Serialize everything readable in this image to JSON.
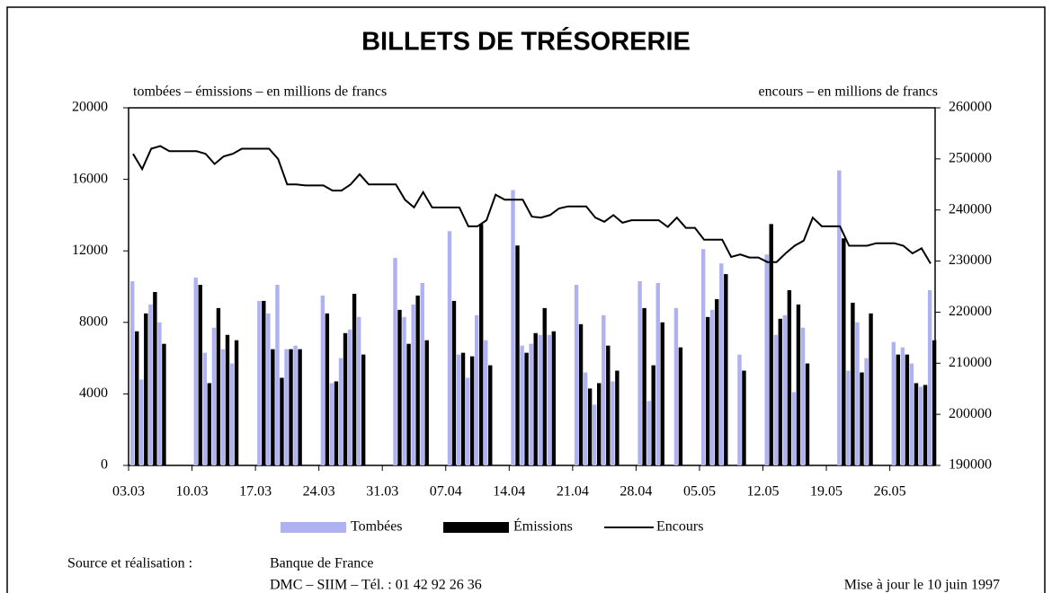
{
  "chart_data": {
    "type": "bar_line",
    "title": "BILLETS DE TRÉSORERIE",
    "y_label": "tombées – émissions – en millions de francs",
    "y2_label": "encours – en millions de francs",
    "categories": [
      "03.03",
      null,
      null,
      null,
      null,
      null,
      null,
      "10.03",
      null,
      null,
      null,
      null,
      null,
      null,
      "17.03",
      null,
      null,
      null,
      null,
      null,
      null,
      "24.03",
      null,
      null,
      null,
      null,
      null,
      null,
      "31.03",
      null,
      null,
      null,
      null,
      null,
      null,
      "07.04",
      null,
      null,
      null,
      null,
      null,
      null,
      "14.04",
      null,
      null,
      null,
      null,
      null,
      null,
      "21.04",
      null,
      null,
      null,
      null,
      null,
      null,
      "28.04",
      null,
      null,
      null,
      null,
      null,
      null,
      "05.05",
      null,
      null,
      null,
      null,
      null,
      null,
      "12.05",
      null,
      null,
      null,
      null,
      null,
      null,
      "19.05",
      null,
      null,
      null,
      null,
      null,
      null,
      "26.05",
      null,
      null,
      null,
      null
    ],
    "ylim": [
      0,
      20000
    ],
    "yticks": [
      0,
      4000,
      8000,
      12000,
      16000,
      20000
    ],
    "y2lim": [
      190000,
      260000
    ],
    "y2ticks": [
      190000,
      200000,
      210000,
      220000,
      230000,
      240000,
      250000,
      260000
    ],
    "series": [
      {
        "name": "Tombées",
        "color": "#aeb2f0",
        "values": [
          10300,
          4800,
          9000,
          8000,
          null,
          null,
          null,
          10500,
          6300,
          7700,
          6500,
          5700,
          null,
          null,
          9200,
          8500,
          10100,
          6500,
          6700,
          null,
          null,
          9500,
          4600,
          6000,
          7600,
          8300,
          null,
          null,
          null,
          11600,
          8300,
          9000,
          10200,
          null,
          null,
          13100,
          6200,
          4900,
          8400,
          7000,
          null,
          null,
          15400,
          6700,
          6800,
          7300,
          7300,
          null,
          null,
          10100,
          5200,
          3400,
          8400,
          4700,
          null,
          null,
          10300,
          3600,
          10200,
          null,
          8800,
          null,
          null,
          12100,
          8700,
          11300,
          null,
          6200,
          null,
          null,
          11800,
          7300,
          8400,
          4100,
          7700,
          null,
          null,
          null,
          16500,
          5300,
          8000,
          6000,
          null,
          null,
          6900,
          6600,
          5700,
          4400,
          9800
        ]
      },
      {
        "name": "Émissions",
        "color": "#000000",
        "values": [
          7500,
          8500,
          9700,
          6800,
          null,
          null,
          null,
          10100,
          4600,
          8800,
          7300,
          7000,
          null,
          null,
          9200,
          6500,
          4900,
          6500,
          6500,
          null,
          null,
          8500,
          4700,
          7400,
          9600,
          6200,
          null,
          null,
          null,
          8700,
          6800,
          9500,
          7000,
          null,
          null,
          9200,
          6300,
          6100,
          13500,
          5600,
          null,
          null,
          12300,
          6300,
          7400,
          8800,
          7500,
          null,
          null,
          7900,
          4300,
          4600,
          6700,
          5300,
          null,
          null,
          8800,
          5600,
          8000,
          null,
          6600,
          null,
          null,
          8300,
          9300,
          10700,
          null,
          5300,
          null,
          null,
          13500,
          8200,
          9800,
          9000,
          5700,
          null,
          null,
          null,
          12700,
          9100,
          5200,
          8500,
          null,
          null,
          6200,
          6200,
          4600,
          4500,
          7000
        ]
      },
      {
        "name": "Encours",
        "color": "#000000",
        "axis": "y2",
        "values": [
          251000,
          248000,
          252000,
          252500,
          251500,
          251500,
          251500,
          251500,
          251000,
          249000,
          250500,
          251000,
          252000,
          252000,
          252000,
          252000,
          250000,
          245000,
          245000,
          244800,
          244800,
          244800,
          243800,
          243800,
          245000,
          247000,
          245000,
          245000,
          245000,
          245000,
          242000,
          240500,
          243500,
          240500,
          240500,
          240500,
          240500,
          236800,
          236800,
          238000,
          243000,
          242000,
          242000,
          242000,
          238700,
          238500,
          239000,
          240300,
          240700,
          240700,
          240700,
          238500,
          237700,
          239000,
          237500,
          238000,
          238000,
          238000,
          238000,
          236700,
          238500,
          236500,
          236500,
          234200,
          234200,
          234200,
          230800,
          231300,
          230700,
          230700,
          229800,
          229800,
          231500,
          233000,
          234000,
          238500,
          236800,
          236800,
          236800,
          233000,
          233000,
          233000,
          233500,
          233500,
          233500,
          233000,
          231500,
          232500,
          229500
        ]
      }
    ],
    "source_label": "Source et réalisation :",
    "source": "Banque de France",
    "contact": "DMC – SIIM – Tél. : 01 42 92 26 36",
    "updated": "Mise à jour le 10 juin 1997"
  }
}
